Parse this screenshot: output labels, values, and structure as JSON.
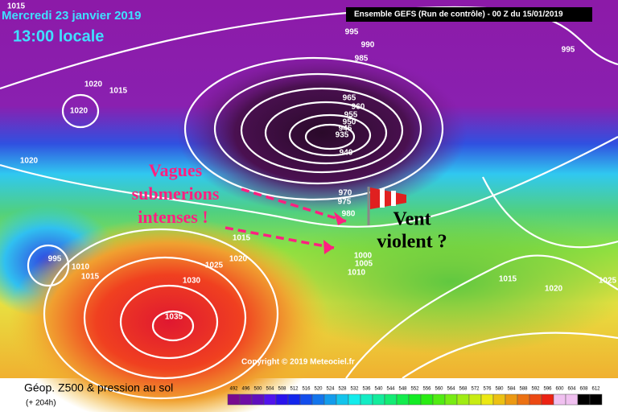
{
  "header": {
    "date": "Mercredi 23 janvier 2019",
    "time": "13:00 locale",
    "model": "Ensemble GEFS  (Run de contrôle)  -  00 Z du 15/01/2019"
  },
  "annotations": {
    "waves": [
      "Vagues",
      "submerions",
      "intenses !"
    ],
    "wind": [
      "Vent",
      "violent ?"
    ]
  },
  "isobar_labels": [
    "1015",
    "995",
    "990",
    "985",
    "995",
    "1020",
    "1015",
    "1020",
    "965",
    "960",
    "955",
    "950",
    "945",
    "935",
    "940",
    "1020",
    "970",
    "975",
    "980",
    "1015",
    "1020",
    "1025",
    "1030",
    "1035",
    "1000",
    "1005",
    "1010",
    "1015",
    "1020",
    "1025",
    "995",
    "1010",
    "1015"
  ],
  "copyright": "Copyright © 2019 Meteociel.fr",
  "footer": {
    "title": "Géop. Z500 & pression au sol",
    "lead": "(+ 204h)"
  },
  "legend": [
    "492",
    "496",
    "500",
    "504",
    "508",
    "512",
    "516",
    "520",
    "524",
    "528",
    "532",
    "536",
    "540",
    "544",
    "548",
    "552",
    "556",
    "560",
    "564",
    "568",
    "572",
    "576",
    "580",
    "584",
    "588",
    "592",
    "596",
    "600",
    "604",
    "608",
    "612"
  ]
}
